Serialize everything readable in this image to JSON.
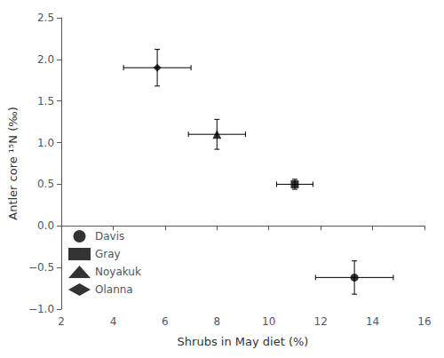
{
  "chart_data": {
    "type": "scatter",
    "xlabel": "Shrubs in May diet (%)",
    "ylabel": "Antler core ¹⁵N (‰)",
    "series": [
      {
        "name": "Davis",
        "marker": "circle",
        "color": "black",
        "x": [
          13.3
        ],
        "values": [
          -0.62
        ],
        "xerr": [
          1.5
        ],
        "yerr": [
          0.2
        ]
      },
      {
        "name": "Gray",
        "marker": "square",
        "color": "black",
        "x": [
          11.0
        ],
        "values": [
          0.5
        ],
        "xerr": [
          0.7
        ],
        "yerr": [
          0.06
        ]
      },
      {
        "name": "Noyakuk",
        "marker": "triangle",
        "color": "black",
        "x": [
          8.0
        ],
        "values": [
          1.1
        ],
        "xerr": [
          1.1
        ],
        "yerr": [
          0.18
        ]
      },
      {
        "name": "Olanna",
        "marker": "diamond",
        "color": "black",
        "x": [
          5.7
        ],
        "values": [
          1.9
        ],
        "xerr": [
          1.3
        ],
        "yerr": [
          0.22
        ]
      }
    ],
    "xlim": [
      2,
      16
    ],
    "ylim": [
      -1.0,
      2.5
    ],
    "xticks": [
      2,
      4,
      6,
      8,
      10,
      12,
      14,
      16
    ],
    "yticks": [
      {
        "value": -1.0,
        "label": "−1.0"
      },
      {
        "value": -0.5,
        "label": "−0.5"
      },
      {
        "value": 0.0,
        "label": "0.0"
      },
      0.5,
      {
        "value": 1.0,
        "label": "1.0"
      },
      1.5,
      {
        "value": 2.0,
        "label": "2.0"
      },
      2.5
    ],
    "legend": "lower left",
    "grid": false
  }
}
